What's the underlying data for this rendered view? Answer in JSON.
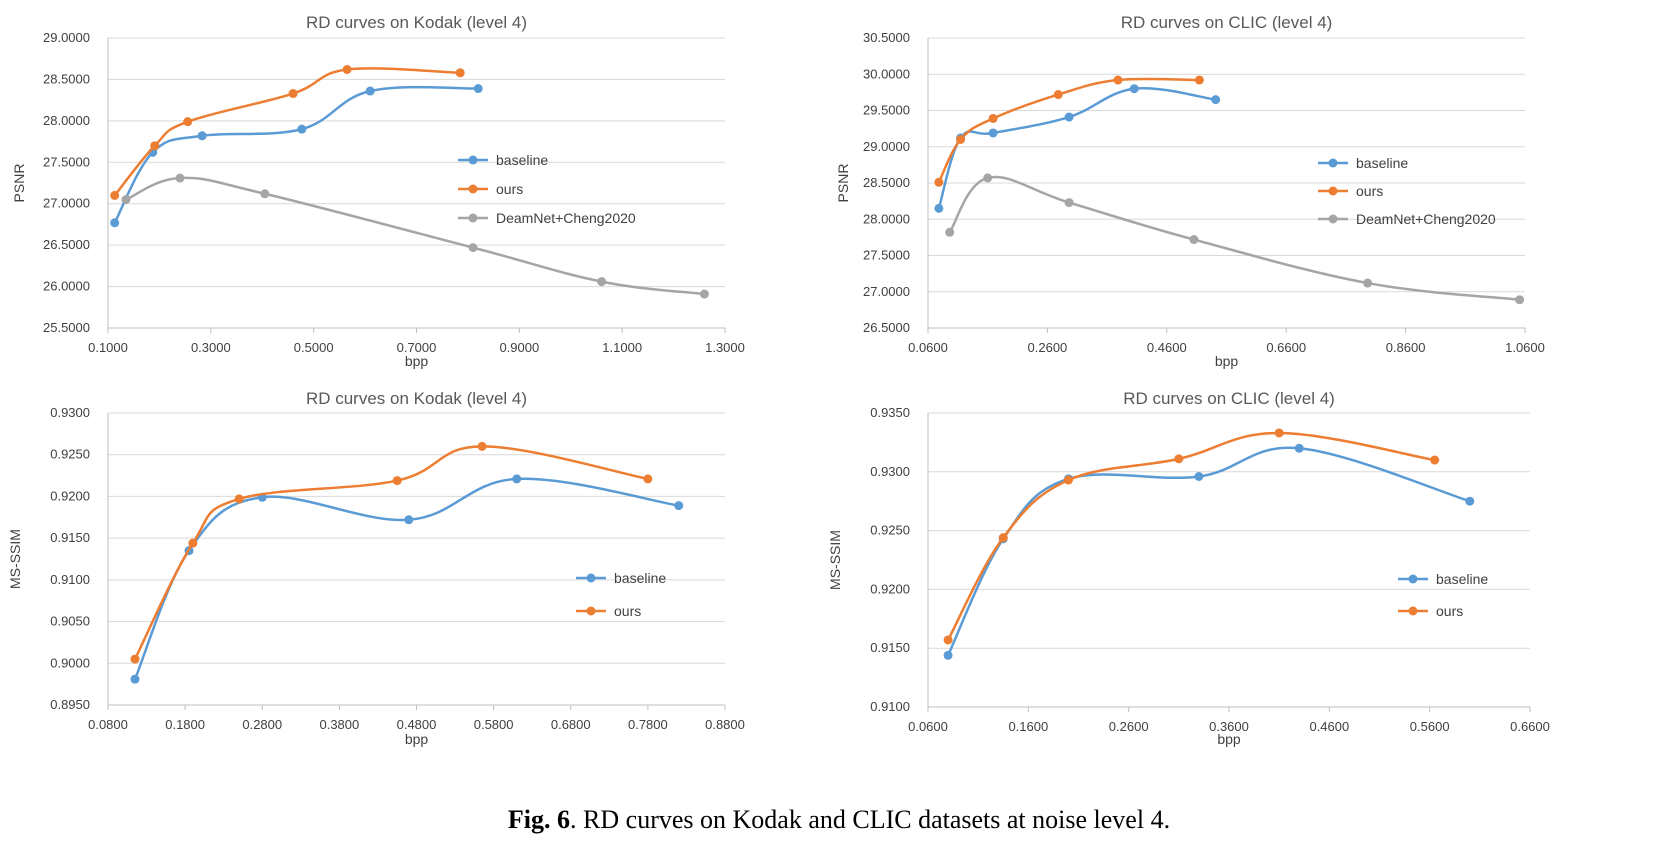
{
  "caption": {
    "label": "Fig. 6",
    "text": ". RD curves on Kodak and CLIC datasets at noise level 4."
  },
  "chart_data": [
    {
      "type": "line",
      "title": "RD curves on Kodak (level 4)",
      "xlabel": "bpp",
      "ylabel": "PSNR",
      "xlim": [
        0.1,
        1.3
      ],
      "ylim": [
        25.5,
        29.0
      ],
      "xticks": [
        "0.1000",
        "0.3000",
        "0.5000",
        "0.7000",
        "0.9000",
        "1.1000",
        "1.3000"
      ],
      "yticks": [
        "25.5000",
        "26.0000",
        "26.5000",
        "27.0000",
        "27.5000",
        "28.0000",
        "28.5000",
        "29.0000"
      ],
      "legend_position": "right",
      "series": [
        {
          "name": "baseline",
          "color": "#5b9bd5",
          "x": [
            0.113,
            0.187,
            0.283,
            0.477,
            0.61,
            0.82
          ],
          "y": [
            26.77,
            27.62,
            27.82,
            27.9,
            28.36,
            28.39
          ]
        },
        {
          "name": "ours",
          "color": "#ed7d31",
          "x": [
            0.113,
            0.191,
            0.255,
            0.46,
            0.565,
            0.785
          ],
          "y": [
            27.1,
            27.7,
            27.99,
            28.33,
            28.62,
            28.58
          ]
        },
        {
          "name": "DeamNet+Cheng2020",
          "color": "#a5a5a5",
          "x": [
            0.135,
            0.24,
            0.405,
            0.81,
            1.06,
            1.26
          ],
          "y": [
            27.05,
            27.31,
            27.12,
            26.47,
            26.06,
            25.91
          ]
        }
      ]
    },
    {
      "type": "line",
      "title": "RD curves on CLIC (level 4)",
      "xlabel": "bpp",
      "ylabel": "PSNR",
      "xlim": [
        0.06,
        1.16
      ],
      "ylim": [
        26.5,
        30.5
      ],
      "xticks": [
        "0.0600",
        "0.2600",
        "0.4600",
        "0.6600",
        "0.8600",
        "1.0600"
      ],
      "yticks": [
        "26.5000",
        "27.0000",
        "27.5000",
        "28.0000",
        "28.5000",
        "29.0000",
        "29.5000",
        "30.0000",
        "30.5000"
      ],
      "legend_position": "right",
      "series": [
        {
          "name": "baseline",
          "color": "#5b9bd5",
          "x": [
            0.08,
            0.12,
            0.18,
            0.32,
            0.44,
            0.59
          ],
          "y": [
            28.15,
            29.12,
            29.19,
            29.41,
            29.8,
            29.65
          ]
        },
        {
          "name": "ours",
          "color": "#ed7d31",
          "x": [
            0.08,
            0.12,
            0.18,
            0.3,
            0.41,
            0.56
          ],
          "y": [
            28.51,
            29.1,
            29.39,
            29.72,
            29.92,
            29.92
          ]
        },
        {
          "name": "DeamNet+Cheng2020",
          "color": "#a5a5a5",
          "x": [
            0.1,
            0.17,
            0.32,
            0.55,
            0.87,
            1.15
          ],
          "y": [
            27.82,
            28.57,
            28.23,
            27.72,
            27.12,
            26.89
          ]
        }
      ]
    },
    {
      "type": "line",
      "title": "RD curves on Kodak (level 4)",
      "xlabel": "bpp",
      "ylabel": "MS-SSIM",
      "xlim": [
        0.08,
        0.88
      ],
      "ylim": [
        0.895,
        0.93
      ],
      "xticks": [
        "0.0800",
        "0.1800",
        "0.2800",
        "0.3800",
        "0.4800",
        "0.5800",
        "0.6800",
        "0.7800",
        "0.8800"
      ],
      "yticks": [
        "0.8950",
        "0.9000",
        "0.9050",
        "0.9100",
        "0.9150",
        "0.9200",
        "0.9250",
        "0.9300"
      ],
      "legend_position": "right",
      "series": [
        {
          "name": "baseline",
          "color": "#5b9bd5",
          "x": [
            0.115,
            0.185,
            0.28,
            0.47,
            0.61,
            0.82
          ],
          "y": [
            0.8981,
            0.9135,
            0.9199,
            0.9172,
            0.9221,
            0.9189
          ]
        },
        {
          "name": "ours",
          "color": "#ed7d31",
          "x": [
            0.115,
            0.19,
            0.25,
            0.455,
            0.565,
            0.78
          ],
          "y": [
            0.9005,
            0.9144,
            0.9197,
            0.9219,
            0.926,
            0.9221
          ]
        }
      ]
    },
    {
      "type": "line",
      "title": "RD curves on CLIC (level 4)",
      "xlabel": "bpp",
      "ylabel": "MS-SSIM",
      "xlim": [
        0.06,
        0.66
      ],
      "ylim": [
        0.91,
        0.935
      ],
      "xticks": [
        "0.0600",
        "0.1600",
        "0.2600",
        "0.3600",
        "0.4600",
        "0.5600",
        "0.6600"
      ],
      "yticks": [
        "0.9100",
        "0.9150",
        "0.9200",
        "0.9250",
        "0.9300",
        "0.9350"
      ],
      "legend_position": "right",
      "series": [
        {
          "name": "baseline",
          "color": "#5b9bd5",
          "x": [
            0.08,
            0.135,
            0.2,
            0.33,
            0.43,
            0.6
          ],
          "y": [
            0.9144,
            0.9243,
            0.9294,
            0.9296,
            0.932,
            0.9275
          ]
        },
        {
          "name": "ours",
          "color": "#ed7d31",
          "x": [
            0.08,
            0.135,
            0.2,
            0.31,
            0.41,
            0.565
          ],
          "y": [
            0.9157,
            0.9244,
            0.9293,
            0.9311,
            0.9333,
            0.931
          ]
        }
      ]
    }
  ]
}
